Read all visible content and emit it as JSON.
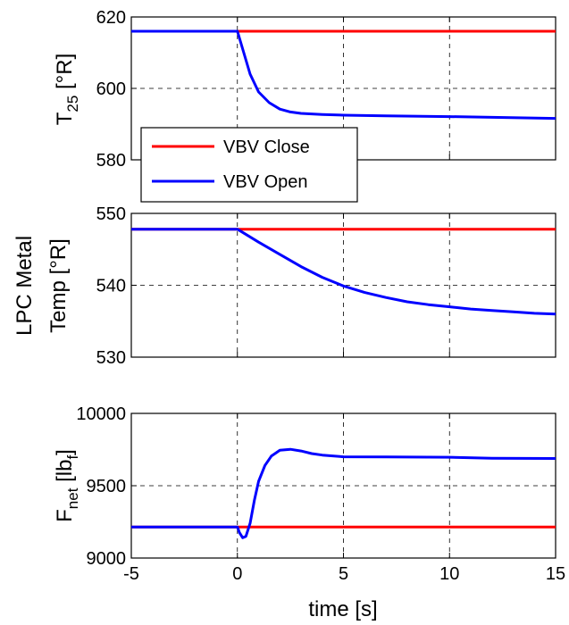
{
  "chart_data": [
    {
      "type": "line",
      "ylabel": {
        "main": "T",
        "sub": "25",
        "unit": " [°R]"
      },
      "xlim": [
        -5,
        15
      ],
      "ylim": [
        580,
        620
      ],
      "yticks": [
        "580",
        "600",
        "620"
      ],
      "ytick_values": [
        580,
        600,
        620
      ],
      "grid": true,
      "legend": {
        "placement": "bottom-left",
        "entries": [
          {
            "label": "VBV Close",
            "color": "#ff0000"
          },
          {
            "label": "VBV Open",
            "color": "#0000ff"
          }
        ]
      },
      "series": [
        {
          "name": "VBV Close",
          "color": "#ff0000",
          "x": [
            -5,
            15
          ],
          "y": [
            616,
            616
          ]
        },
        {
          "name": "VBV Open",
          "color": "#0000ff",
          "x": [
            -5,
            0,
            0.3,
            0.6,
            1.0,
            1.5,
            2.0,
            2.5,
            3.0,
            4.0,
            5.0,
            7.0,
            10.0,
            12.0,
            15.0
          ],
          "y": [
            616,
            616,
            610,
            604,
            599,
            596,
            594.2,
            593.4,
            593.0,
            592.7,
            592.5,
            592.3,
            592.1,
            591.9,
            591.6
          ]
        }
      ]
    },
    {
      "type": "line",
      "ylabel": {
        "line1": "LPC Metal",
        "line2": "Temp [°R]"
      },
      "xlim": [
        -5,
        15
      ],
      "ylim": [
        530,
        550
      ],
      "yticks": [
        "530",
        "540",
        "550"
      ],
      "ytick_values": [
        530,
        540,
        550
      ],
      "grid": true,
      "series": [
        {
          "name": "VBV Close",
          "color": "#ff0000",
          "x": [
            -5,
            15
          ],
          "y": [
            547.8,
            547.8
          ]
        },
        {
          "name": "VBV Open",
          "color": "#0000ff",
          "x": [
            -5,
            0,
            1,
            2,
            3,
            4,
            5,
            6,
            7,
            8,
            9,
            10,
            11,
            12,
            13,
            14,
            15
          ],
          "y": [
            547.8,
            547.8,
            546.0,
            544.3,
            542.6,
            541.1,
            539.9,
            539.0,
            538.3,
            537.7,
            537.3,
            537.0,
            536.7,
            536.5,
            536.3,
            536.1,
            536.0
          ]
        }
      ]
    },
    {
      "type": "line",
      "ylabel": {
        "main": "F",
        "sub": "net",
        "unit": " [lb",
        "unit_sub": "f",
        "unit_end": "]"
      },
      "xlabel": "time [s]",
      "xlim": [
        -5,
        15
      ],
      "ylim": [
        9000,
        10000
      ],
      "xticks": [
        "-5",
        "0",
        "5",
        "10",
        "15"
      ],
      "xtick_values": [
        -5,
        0,
        5,
        10,
        15
      ],
      "yticks": [
        "9000",
        "9500",
        "10000"
      ],
      "ytick_values": [
        9000,
        9500,
        10000
      ],
      "grid": true,
      "series": [
        {
          "name": "VBV Close",
          "color": "#ff0000",
          "x": [
            -5,
            15
          ],
          "y": [
            9215,
            9215
          ]
        },
        {
          "name": "VBV Open",
          "color": "#0000ff",
          "x": [
            -5,
            0,
            0.1,
            0.25,
            0.4,
            0.6,
            0.8,
            1.0,
            1.3,
            1.6,
            2.0,
            2.5,
            3.0,
            3.5,
            4.0,
            5.0,
            7.0,
            10.0,
            12.0,
            15.0
          ],
          "y": [
            9215,
            9215,
            9175,
            9140,
            9150,
            9240,
            9400,
            9530,
            9640,
            9705,
            9745,
            9752,
            9740,
            9722,
            9712,
            9700,
            9699,
            9697,
            9690,
            9688
          ]
        }
      ]
    }
  ]
}
